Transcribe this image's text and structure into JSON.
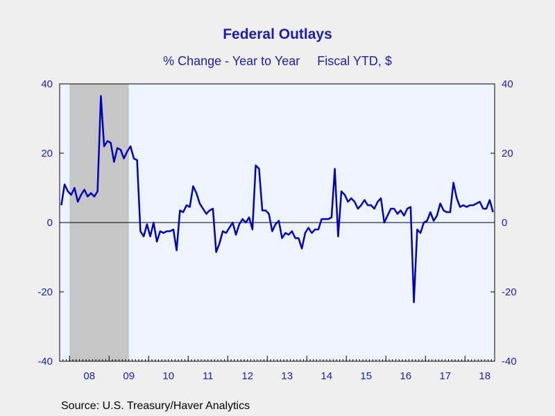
{
  "chart_data": {
    "type": "line",
    "title": "Federal Outlays",
    "subtitle": "% Change - Year to Year     Fiscal YTD, $",
    "source": "Source:  U.S. Treasury/Haver Analytics",
    "ylim": [
      -40,
      40
    ],
    "y_ticks": [
      40,
      20,
      0,
      -20,
      -40
    ],
    "x_tick_labels": [
      "08",
      "09",
      "10",
      "11",
      "12",
      "13",
      "14",
      "15",
      "16",
      "17",
      "18"
    ],
    "x_range": [
      "2007-10",
      "2018-09"
    ],
    "grid": false,
    "shaded_periods": [
      {
        "start": "2008-01",
        "end": "2009-06"
      }
    ],
    "series": [
      {
        "x": [
          "2007-10",
          "2007-11",
          "2007-12",
          "2008-01",
          "2008-02",
          "2008-03",
          "2008-04",
          "2008-05",
          "2008-06",
          "2008-07",
          "2008-08",
          "2008-09",
          "2008-10",
          "2008-11",
          "2008-12",
          "2009-01",
          "2009-02",
          "2009-03",
          "2009-04",
          "2009-05",
          "2009-06",
          "2009-07",
          "2009-08",
          "2009-09",
          "2009-10",
          "2009-11",
          "2009-12",
          "2010-01",
          "2010-02",
          "2010-03",
          "2010-04",
          "2010-05",
          "2010-06",
          "2010-07",
          "2010-08",
          "2010-09",
          "2010-10",
          "2010-11",
          "2010-12",
          "2011-01",
          "2011-02",
          "2011-03",
          "2011-04",
          "2011-05",
          "2011-06",
          "2011-07",
          "2011-08",
          "2011-09",
          "2011-10",
          "2011-11",
          "2011-12",
          "2012-01",
          "2012-02",
          "2012-03",
          "2012-04",
          "2012-05",
          "2012-06",
          "2012-07",
          "2012-08",
          "2012-09",
          "2012-10",
          "2012-11",
          "2012-12",
          "2013-01",
          "2013-02",
          "2013-03",
          "2013-04",
          "2013-05",
          "2013-06",
          "2013-07",
          "2013-08",
          "2013-09",
          "2013-10",
          "2013-11",
          "2013-12",
          "2014-01",
          "2014-02",
          "2014-03",
          "2014-04",
          "2014-05",
          "2014-06",
          "2014-07",
          "2014-08",
          "2014-09",
          "2014-10",
          "2014-11",
          "2014-12",
          "2015-01",
          "2015-02",
          "2015-03",
          "2015-04",
          "2015-05",
          "2015-06",
          "2015-07",
          "2015-08",
          "2015-09",
          "2015-10",
          "2015-11",
          "2015-12",
          "2016-01",
          "2016-02",
          "2016-03",
          "2016-04",
          "2016-05",
          "2016-06",
          "2016-07",
          "2016-08",
          "2016-09",
          "2016-10",
          "2016-11",
          "2016-12",
          "2017-01",
          "2017-02",
          "2017-03",
          "2017-04",
          "2017-05",
          "2017-06",
          "2017-07",
          "2017-08",
          "2017-09",
          "2017-10",
          "2017-11",
          "2017-12",
          "2018-01",
          "2018-02",
          "2018-03",
          "2018-04",
          "2018-05",
          "2018-06",
          "2018-07",
          "2018-08",
          "2018-09"
        ],
        "values": [
          5,
          11,
          9,
          8,
          10,
          6,
          8,
          9.5,
          7.5,
          8.5,
          7.5,
          9,
          36.5,
          22,
          23.5,
          23,
          17.5,
          21.5,
          21,
          18.5,
          20.5,
          22,
          18.5,
          18,
          -2.5,
          -4,
          -0.5,
          -4,
          0,
          -5.5,
          -2.5,
          -3,
          -2.5,
          -2.5,
          -2,
          -8,
          3.5,
          3,
          5,
          4.5,
          10.5,
          8.5,
          5.5,
          4,
          2.5,
          3.5,
          4,
          -8.5,
          -6,
          -2.5,
          -3,
          -1.5,
          0,
          -3.5,
          -0.5,
          1,
          0,
          1.5,
          -2,
          16.5,
          15.5,
          3.5,
          3.5,
          2.5,
          -2.5,
          -0.5,
          0.5,
          -4.5,
          -3,
          -3.5,
          -2.5,
          -4.5,
          -4.5,
          -7.5,
          -3,
          -1.5,
          -3,
          -2,
          -2,
          1,
          1,
          1,
          1.5,
          15.5,
          -4,
          9,
          8,
          6,
          7,
          6,
          4,
          5,
          6.5,
          5,
          5,
          4,
          6,
          7,
          0,
          2,
          4,
          4,
          2.5,
          3.5,
          2,
          4,
          4.5,
          -23,
          -2,
          -3,
          0,
          0.5,
          3,
          0.5,
          2,
          5.5,
          3.5,
          3,
          3,
          11.5,
          7,
          4.5,
          5,
          4.5,
          5,
          5,
          5.5,
          6,
          4,
          4,
          6.5,
          3
        ]
      }
    ]
  },
  "colors": {
    "page_bg": "#efefef",
    "plot_bg": "#edf4ff",
    "recession": "#c6c6c6",
    "line": "#0000bb",
    "axis_text": "#1d1db0"
  }
}
